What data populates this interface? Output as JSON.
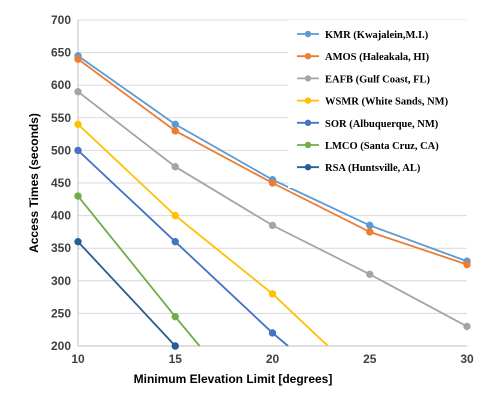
{
  "chart_data": {
    "type": "line",
    "xlabel": "Minimum Elevation Limit [degrees]",
    "ylabel": "Access Times (seconds)",
    "xlim": [
      10,
      30
    ],
    "ylim": [
      200,
      700
    ],
    "xticks": [
      10,
      15,
      20,
      25,
      30
    ],
    "yticks": [
      200,
      250,
      300,
      350,
      400,
      450,
      500,
      550,
      600,
      650,
      700
    ],
    "grid": "horizontal",
    "legend_position": "top-right",
    "series": [
      {
        "name": "KMR (Kwajalein,M.I.)",
        "color": "#5B9BD5",
        "x": [
          10,
          15,
          20,
          25,
          30
        ],
        "y": [
          645,
          540,
          455,
          385,
          330
        ]
      },
      {
        "name": "AMOS (Haleakala, HI)",
        "color": "#ED7D31",
        "x": [
          10,
          15,
          20,
          25,
          30
        ],
        "y": [
          640,
          530,
          450,
          375,
          325
        ]
      },
      {
        "name": "EAFB (Gulf Coast, FL)",
        "color": "#A5A5A5",
        "x": [
          10,
          15,
          20,
          25,
          30
        ],
        "y": [
          590,
          475,
          385,
          310,
          230
        ]
      },
      {
        "name": "WSMR (White Sands, NM)",
        "color": "#FFC000",
        "x": [
          10,
          15,
          20,
          22.85
        ],
        "y": [
          540,
          400,
          280,
          200
        ]
      },
      {
        "name": "SOR (Albuquerque, NM)",
        "color": "#4472C4",
        "x": [
          10,
          15,
          20,
          20.8
        ],
        "y": [
          500,
          360,
          220,
          200
        ]
      },
      {
        "name": "LMCO (Santa Cruz, CA)",
        "color": "#70AD47",
        "x": [
          10,
          15,
          16.25
        ],
        "y": [
          430,
          245,
          200
        ]
      },
      {
        "name": "RSA (Huntsville, AL)",
        "color": "#255E91",
        "x": [
          10,
          15
        ],
        "y": [
          360,
          200
        ]
      }
    ]
  }
}
